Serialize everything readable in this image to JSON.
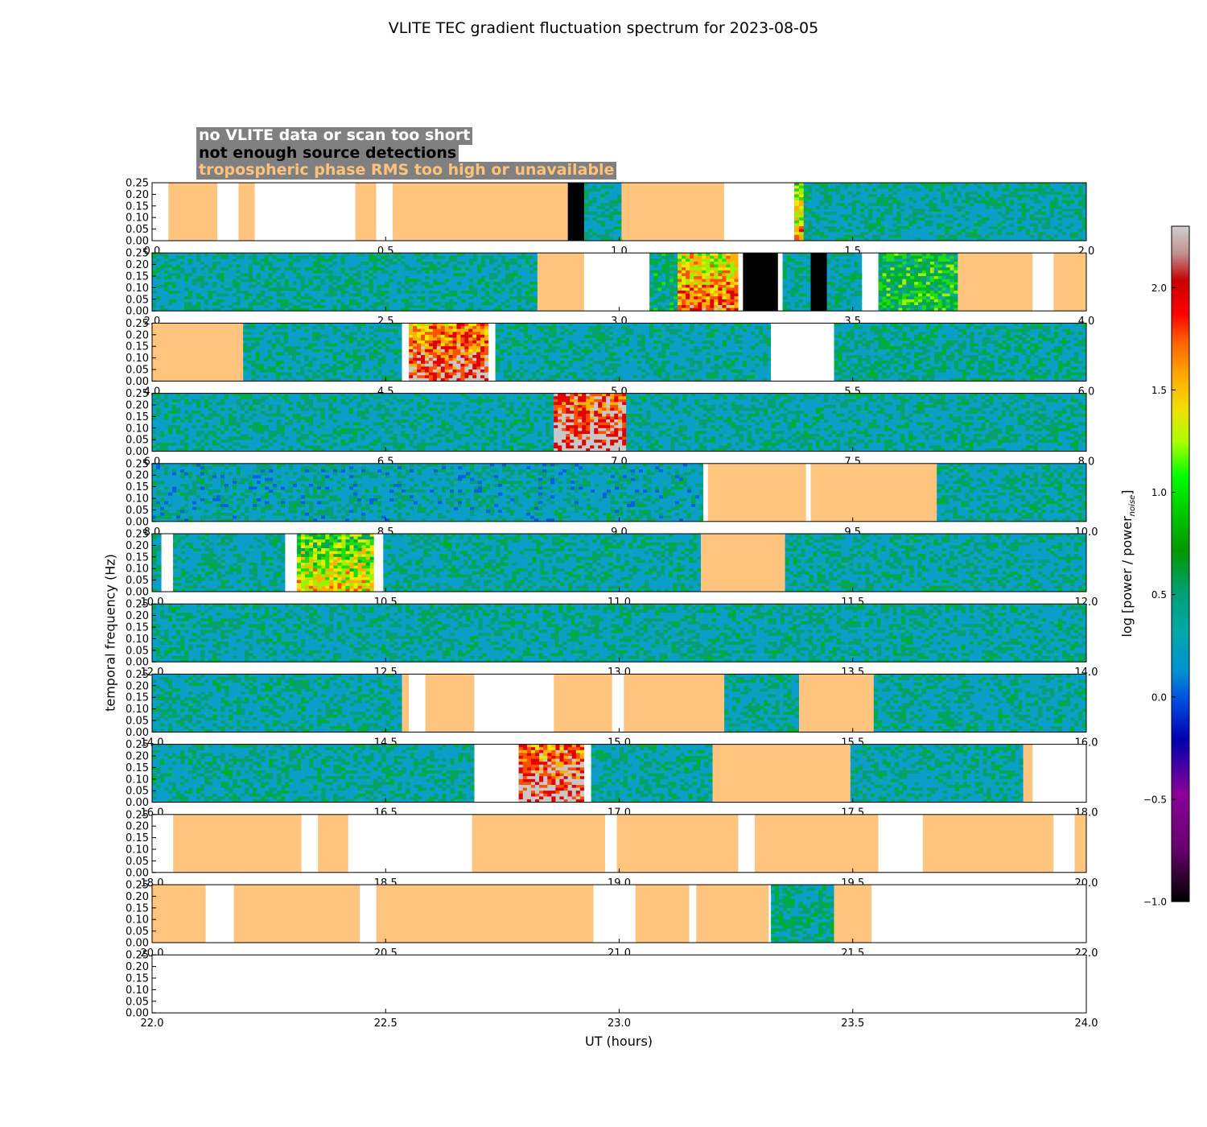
{
  "title": "VLITE TEC gradient fluctuation spectrum for 2023-08-05",
  "legend": {
    "no_data": "no VLITE data or scan too short",
    "no_detections": "not enough source detections",
    "tropo": "tropospheric phase RMS too high or unavailable"
  },
  "colors": {
    "no_data": "#ffffff",
    "no_detections": "#000000",
    "tropo": "#ffc57e",
    "background_spectrum": "#0a9ec8"
  },
  "chart_data": {
    "type": "heatmap",
    "title": "VLITE TEC gradient fluctuation spectrum for 2023-08-05",
    "xlabel": "UT (hours)",
    "ylabel": "temporal frequency (Hz)",
    "colorbar_label": "log [power / power",
    "colorbar_label_sub": "noise",
    "colorbar_label_end": "]",
    "colorbar_range": [
      -1.0,
      2.3
    ],
    "colorbar_ticks": [
      "−1.0",
      "−0.5",
      "0.0",
      "0.5",
      "1.0",
      "1.5",
      "2.0"
    ],
    "colorbar_tick_values": [
      -1.0,
      -0.5,
      0.0,
      0.5,
      1.0,
      1.5,
      2.0
    ],
    "y_range": [
      0.0,
      0.25
    ],
    "y_ticks": [
      "0.00",
      "0.05",
      "0.10",
      "0.15",
      "0.20",
      "0.25"
    ],
    "panels": [
      {
        "range": [
          0,
          2
        ],
        "ticks": [
          "0.0",
          "0.5",
          "1.0",
          "1.5",
          "2.0"
        ],
        "segments": [
          {
            "start": 0.0,
            "end": 0.035,
            "type": "nodata"
          },
          {
            "start": 0.035,
            "end": 0.14,
            "type": "tropo"
          },
          {
            "start": 0.14,
            "end": 0.185,
            "type": "nodata"
          },
          {
            "start": 0.185,
            "end": 0.22,
            "type": "tropo"
          },
          {
            "start": 0.22,
            "end": 0.435,
            "type": "nodata"
          },
          {
            "start": 0.435,
            "end": 0.48,
            "type": "tropo"
          },
          {
            "start": 0.48,
            "end": 0.515,
            "type": "nodata"
          },
          {
            "start": 0.515,
            "end": 0.89,
            "type": "tropo"
          },
          {
            "start": 0.89,
            "end": 0.925,
            "type": "nodet"
          },
          {
            "start": 0.925,
            "end": 1.005,
            "type": "spec",
            "level": 0.2
          },
          {
            "start": 1.005,
            "end": 1.225,
            "type": "tropo"
          },
          {
            "start": 1.225,
            "end": 1.375,
            "type": "nodata"
          },
          {
            "start": 1.375,
            "end": 1.395,
            "type": "spec",
            "level": 0.9
          },
          {
            "start": 1.395,
            "end": 2.0,
            "type": "spec",
            "level": 0.2
          }
        ]
      },
      {
        "range": [
          2,
          4
        ],
        "ticks": [
          "2.0",
          "2.5",
          "3.0",
          "3.5",
          "4.0"
        ],
        "segments": [
          {
            "start": 2.0,
            "end": 2.825,
            "type": "spec",
            "level": 0.2
          },
          {
            "start": 2.825,
            "end": 2.925,
            "type": "tropo"
          },
          {
            "start": 2.925,
            "end": 3.065,
            "type": "nodata"
          },
          {
            "start": 3.065,
            "end": 3.125,
            "type": "spec",
            "level": 0.35
          },
          {
            "start": 3.125,
            "end": 3.255,
            "type": "spec",
            "level": 1.15
          },
          {
            "start": 3.255,
            "end": 3.265,
            "type": "nodata"
          },
          {
            "start": 3.265,
            "end": 3.34,
            "type": "nodet"
          },
          {
            "start": 3.34,
            "end": 3.35,
            "type": "nodata"
          },
          {
            "start": 3.35,
            "end": 3.41,
            "type": "spec",
            "level": 0.2
          },
          {
            "start": 3.41,
            "end": 3.445,
            "type": "nodet"
          },
          {
            "start": 3.445,
            "end": 3.52,
            "type": "spec",
            "level": 0.2
          },
          {
            "start": 3.52,
            "end": 3.555,
            "type": "nodata"
          },
          {
            "start": 3.555,
            "end": 3.725,
            "type": "spec",
            "level": 0.6
          },
          {
            "start": 3.725,
            "end": 3.885,
            "type": "tropo"
          },
          {
            "start": 3.885,
            "end": 3.93,
            "type": "nodata"
          },
          {
            "start": 3.93,
            "end": 4.0,
            "type": "tropo"
          }
        ]
      },
      {
        "range": [
          4,
          6
        ],
        "ticks": [
          "4.0",
          "4.5",
          "5.0",
          "5.5",
          "6.0"
        ],
        "segments": [
          {
            "start": 4.0,
            "end": 4.195,
            "type": "tropo"
          },
          {
            "start": 4.195,
            "end": 4.535,
            "type": "spec",
            "level": 0.2
          },
          {
            "start": 4.535,
            "end": 4.55,
            "type": "nodata"
          },
          {
            "start": 4.55,
            "end": 4.72,
            "type": "spec",
            "level": 1.45
          },
          {
            "start": 4.72,
            "end": 4.735,
            "type": "nodata"
          },
          {
            "start": 4.735,
            "end": 5.325,
            "type": "spec",
            "level": 0.2
          },
          {
            "start": 5.325,
            "end": 5.46,
            "type": "nodata"
          },
          {
            "start": 5.46,
            "end": 6.0,
            "type": "spec",
            "level": 0.25
          }
        ]
      },
      {
        "range": [
          6,
          8
        ],
        "ticks": [
          "6.0",
          "6.5",
          "7.0",
          "7.5",
          "8.0"
        ],
        "segments": [
          {
            "start": 6.0,
            "end": 6.86,
            "type": "spec",
            "level": 0.2
          },
          {
            "start": 6.86,
            "end": 7.015,
            "type": "spec",
            "level": 1.7
          },
          {
            "start": 7.015,
            "end": 8.0,
            "type": "spec",
            "level": 0.2
          }
        ]
      },
      {
        "range": [
          8,
          10
        ],
        "ticks": [
          "8.0",
          "8.5",
          "9.0",
          "9.5",
          "10.0"
        ],
        "segments": [
          {
            "start": 8.0,
            "end": 9.18,
            "type": "spec",
            "level": 0.15
          },
          {
            "start": 9.18,
            "end": 9.19,
            "type": "nodata"
          },
          {
            "start": 9.19,
            "end": 9.4,
            "type": "tropo"
          },
          {
            "start": 9.4,
            "end": 9.41,
            "type": "nodata"
          },
          {
            "start": 9.41,
            "end": 9.68,
            "type": "tropo"
          },
          {
            "start": 9.68,
            "end": 10.0,
            "type": "spec",
            "level": 0.2
          }
        ]
      },
      {
        "range": [
          10,
          12
        ],
        "ticks": [
          "10.0",
          "10.5",
          "11.0",
          "11.5",
          "12.0"
        ],
        "segments": [
          {
            "start": 10.0,
            "end": 10.02,
            "type": "spec",
            "level": 0.2
          },
          {
            "start": 10.02,
            "end": 10.045,
            "type": "nodata"
          },
          {
            "start": 10.045,
            "end": 10.285,
            "type": "spec",
            "level": 0.2
          },
          {
            "start": 10.285,
            "end": 10.31,
            "type": "nodata"
          },
          {
            "start": 10.31,
            "end": 10.475,
            "type": "spec",
            "level": 0.75
          },
          {
            "start": 10.475,
            "end": 10.495,
            "type": "nodata"
          },
          {
            "start": 10.495,
            "end": 11.175,
            "type": "spec",
            "level": 0.2
          },
          {
            "start": 11.175,
            "end": 11.355,
            "type": "tropo"
          },
          {
            "start": 11.355,
            "end": 12.0,
            "type": "spec",
            "level": 0.2
          }
        ]
      },
      {
        "range": [
          12,
          14
        ],
        "ticks": [
          "12.0",
          "12.5",
          "13.0",
          "13.5",
          "14.0"
        ],
        "segments": [
          {
            "start": 12.0,
            "end": 14.0,
            "type": "spec",
            "level": 0.2
          }
        ]
      },
      {
        "range": [
          14,
          16
        ],
        "ticks": [
          "14.0",
          "14.5",
          "15.0",
          "15.5",
          "16.0"
        ],
        "segments": [
          {
            "start": 14.0,
            "end": 14.535,
            "type": "spec",
            "level": 0.2
          },
          {
            "start": 14.535,
            "end": 14.55,
            "type": "tropo"
          },
          {
            "start": 14.55,
            "end": 14.585,
            "type": "nodata"
          },
          {
            "start": 14.585,
            "end": 14.69,
            "type": "tropo"
          },
          {
            "start": 14.69,
            "end": 14.86,
            "type": "nodata"
          },
          {
            "start": 14.86,
            "end": 14.985,
            "type": "tropo"
          },
          {
            "start": 14.985,
            "end": 15.01,
            "type": "nodata"
          },
          {
            "start": 15.01,
            "end": 15.225,
            "type": "tropo"
          },
          {
            "start": 15.225,
            "end": 15.385,
            "type": "spec",
            "level": 0.2
          },
          {
            "start": 15.385,
            "end": 15.545,
            "type": "tropo"
          },
          {
            "start": 15.545,
            "end": 16.0,
            "type": "spec",
            "level": 0.2
          }
        ]
      },
      {
        "range": [
          16,
          18
        ],
        "ticks": [
          "16.0",
          "16.5",
          "17.0",
          "17.5",
          "18.0"
        ],
        "segments": [
          {
            "start": 16.0,
            "end": 16.69,
            "type": "spec",
            "level": 0.2
          },
          {
            "start": 16.69,
            "end": 16.785,
            "type": "nodata"
          },
          {
            "start": 16.785,
            "end": 16.925,
            "type": "spec",
            "level": 1.6
          },
          {
            "start": 16.925,
            "end": 16.94,
            "type": "nodata"
          },
          {
            "start": 16.94,
            "end": 17.2,
            "type": "spec",
            "level": 0.2
          },
          {
            "start": 17.2,
            "end": 17.495,
            "type": "tropo"
          },
          {
            "start": 17.495,
            "end": 17.865,
            "type": "spec",
            "level": 0.2
          },
          {
            "start": 17.865,
            "end": 17.885,
            "type": "tropo"
          },
          {
            "start": 17.885,
            "end": 18.0,
            "type": "nodata"
          }
        ]
      },
      {
        "range": [
          18,
          20
        ],
        "ticks": [
          "18.0",
          "18.5",
          "19.0",
          "19.5",
          "20.0"
        ],
        "segments": [
          {
            "start": 18.0,
            "end": 18.045,
            "type": "nodata"
          },
          {
            "start": 18.045,
            "end": 18.32,
            "type": "tropo"
          },
          {
            "start": 18.32,
            "end": 18.355,
            "type": "nodata"
          },
          {
            "start": 18.355,
            "end": 18.42,
            "type": "tropo"
          },
          {
            "start": 18.42,
            "end": 18.685,
            "type": "nodata"
          },
          {
            "start": 18.685,
            "end": 18.97,
            "type": "tropo"
          },
          {
            "start": 18.97,
            "end": 18.995,
            "type": "nodata"
          },
          {
            "start": 18.995,
            "end": 19.255,
            "type": "tropo"
          },
          {
            "start": 19.255,
            "end": 19.29,
            "type": "nodata"
          },
          {
            "start": 19.29,
            "end": 19.555,
            "type": "tropo"
          },
          {
            "start": 19.555,
            "end": 19.65,
            "type": "nodata"
          },
          {
            "start": 19.65,
            "end": 19.93,
            "type": "tropo"
          },
          {
            "start": 19.93,
            "end": 19.975,
            "type": "nodata"
          },
          {
            "start": 19.975,
            "end": 20.0,
            "type": "tropo"
          }
        ]
      },
      {
        "range": [
          20,
          22
        ],
        "ticks": [
          "20.0",
          "20.5",
          "21.0",
          "21.5",
          "22.0"
        ],
        "segments": [
          {
            "start": 20.0,
            "end": 20.115,
            "type": "tropo"
          },
          {
            "start": 20.115,
            "end": 20.175,
            "type": "nodata"
          },
          {
            "start": 20.175,
            "end": 20.445,
            "type": "tropo"
          },
          {
            "start": 20.445,
            "end": 20.48,
            "type": "nodata"
          },
          {
            "start": 20.48,
            "end": 20.945,
            "type": "tropo"
          },
          {
            "start": 20.945,
            "end": 21.035,
            "type": "nodata"
          },
          {
            "start": 21.035,
            "end": 21.15,
            "type": "tropo"
          },
          {
            "start": 21.15,
            "end": 21.165,
            "type": "nodata"
          },
          {
            "start": 21.165,
            "end": 21.32,
            "type": "tropo"
          },
          {
            "start": 21.32,
            "end": 21.325,
            "type": "nodata"
          },
          {
            "start": 21.325,
            "end": 21.46,
            "type": "spec",
            "level": 0.3
          },
          {
            "start": 21.46,
            "end": 21.54,
            "type": "tropo"
          },
          {
            "start": 21.54,
            "end": 22.0,
            "type": "nodata"
          }
        ]
      },
      {
        "range": [
          22,
          24
        ],
        "ticks": [
          "22.0",
          "22.5",
          "23.0",
          "23.5",
          "24.0"
        ],
        "segments": []
      }
    ]
  }
}
